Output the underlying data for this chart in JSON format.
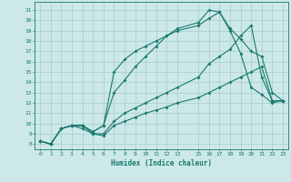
{
  "xlabel": "Humidex (Indice chaleur)",
  "bg_color": "#cce8e8",
  "line_color": "#1a7a6e",
  "grid_color": "#a8cccc",
  "xlim": [
    -0.5,
    23.5
  ],
  "ylim": [
    7.5,
    21.8
  ],
  "xticks": [
    0,
    1,
    2,
    3,
    4,
    5,
    6,
    7,
    8,
    9,
    10,
    11,
    12,
    13,
    15,
    16,
    17,
    18,
    19,
    20,
    21,
    22,
    23
  ],
  "yticks": [
    8,
    9,
    10,
    11,
    12,
    13,
    14,
    15,
    16,
    17,
    18,
    19,
    20,
    21
  ],
  "line1_x": [
    0,
    1,
    2,
    3,
    4,
    5,
    6,
    7,
    8,
    9,
    10,
    11,
    12,
    13,
    15,
    16,
    17,
    18,
    19,
    20,
    21,
    22,
    23
  ],
  "line1_y": [
    8.3,
    8.0,
    9.5,
    9.8,
    9.8,
    9.0,
    8.8,
    9.8,
    10.2,
    10.6,
    11.0,
    11.3,
    11.6,
    12.0,
    12.5,
    13.0,
    13.5,
    14.0,
    14.5,
    15.0,
    15.5,
    12.2,
    12.2
  ],
  "line2_x": [
    0,
    1,
    2,
    3,
    4,
    5,
    6,
    7,
    8,
    9,
    10,
    11,
    12,
    13,
    15,
    16,
    17,
    18,
    19,
    20,
    21,
    22,
    23
  ],
  "line2_y": [
    8.3,
    8.0,
    9.5,
    9.8,
    9.5,
    9.0,
    9.0,
    10.2,
    11.0,
    11.5,
    12.0,
    12.5,
    13.0,
    13.5,
    14.5,
    15.8,
    16.5,
    17.2,
    18.5,
    19.5,
    14.5,
    12.2,
    12.2
  ],
  "line3_x": [
    0,
    1,
    2,
    3,
    4,
    5,
    6,
    7,
    8,
    9,
    10,
    11,
    12,
    13,
    15,
    16,
    17,
    18,
    19,
    20,
    21,
    22,
    23
  ],
  "line3_y": [
    8.3,
    8.0,
    9.5,
    9.8,
    9.8,
    9.2,
    9.8,
    15.0,
    16.2,
    17.0,
    17.5,
    18.0,
    18.5,
    19.0,
    19.5,
    20.2,
    20.8,
    19.2,
    18.2,
    17.0,
    16.5,
    13.0,
    12.2
  ],
  "line4_x": [
    0,
    1,
    2,
    3,
    4,
    5,
    6,
    7,
    8,
    9,
    10,
    11,
    12,
    13,
    15,
    16,
    17,
    18,
    19,
    20,
    21,
    22,
    23
  ],
  "line4_y": [
    8.3,
    8.0,
    9.5,
    9.8,
    9.8,
    9.2,
    9.8,
    13.0,
    14.2,
    15.5,
    16.5,
    17.5,
    18.5,
    19.2,
    19.8,
    21.0,
    20.8,
    19.0,
    16.8,
    13.5,
    12.8,
    12.0,
    12.2
  ]
}
